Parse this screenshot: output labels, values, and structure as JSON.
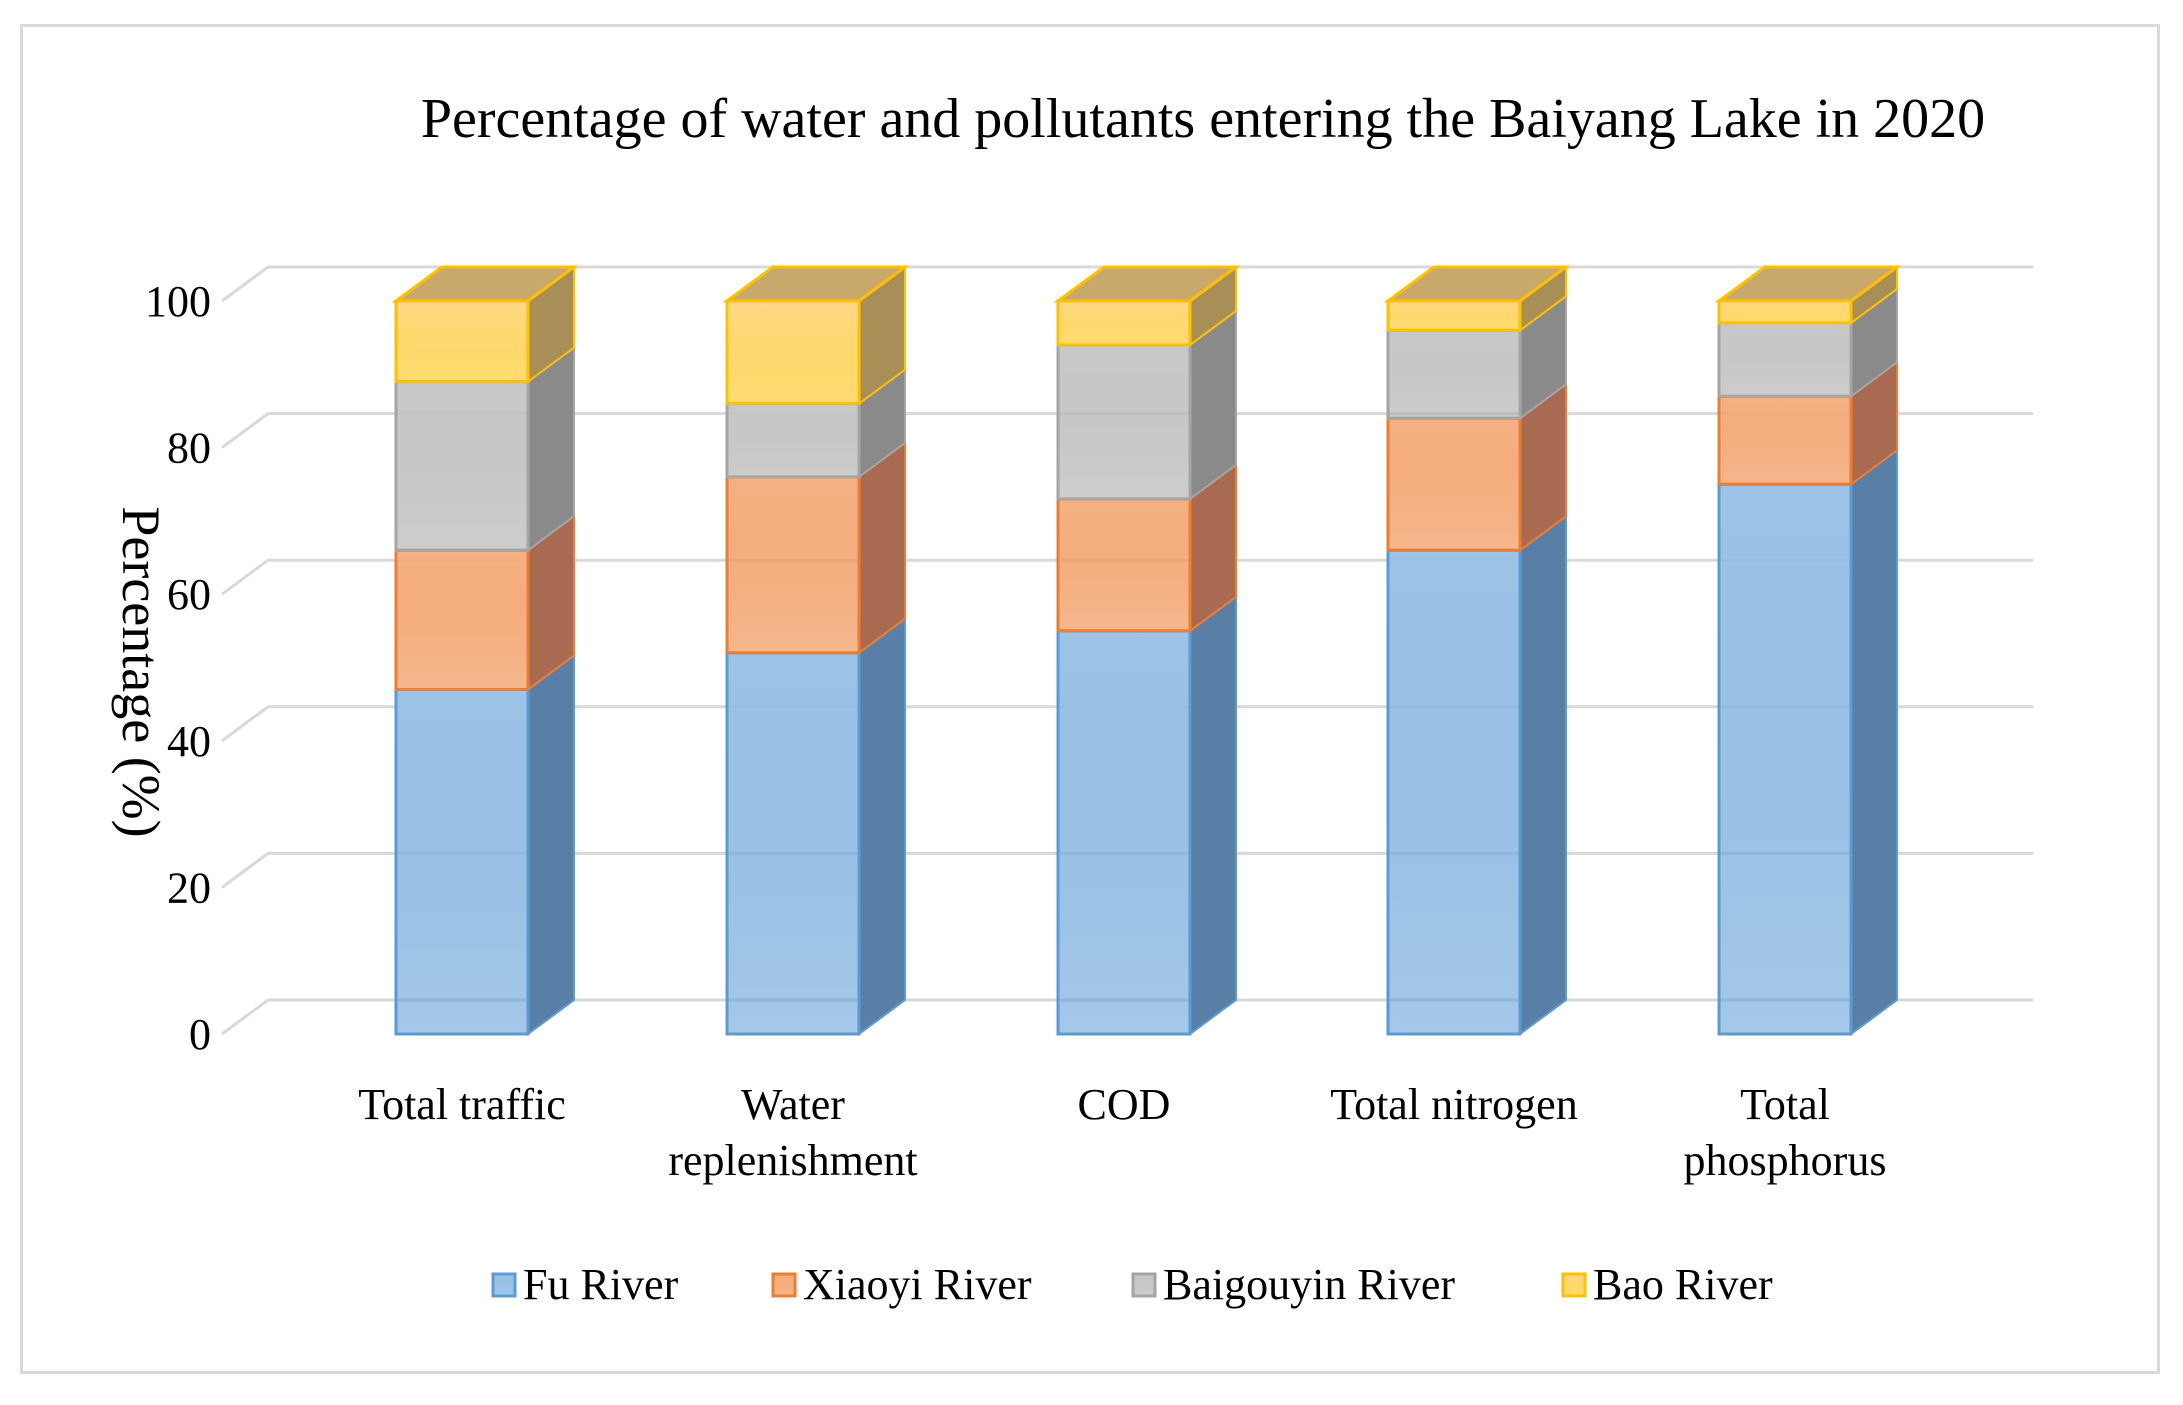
{
  "chart_data": {
    "type": "bar",
    "stacked": true,
    "style": "3d",
    "title": "Percentage of water and pollutants entering the Baiyang Lake in 2020",
    "xlabel": "",
    "ylabel": "Percentage (%)",
    "ylim": [
      0,
      100
    ],
    "yticks": [
      0,
      20,
      40,
      60,
      80,
      100
    ],
    "grid": true,
    "legend_position": "bottom",
    "categories": [
      [
        "Total traffic"
      ],
      [
        "Water",
        "replenishment"
      ],
      [
        "COD"
      ],
      [
        "Total nitrogen"
      ],
      [
        "Total",
        "phosphorus"
      ]
    ],
    "series": [
      {
        "name": "Fu River",
        "values": [
          47,
          52,
          55,
          66,
          75
        ],
        "color": "#9dc3e6",
        "edge": "#5b9bd5",
        "side": "#5a7fa6",
        "top": "#8fb0cf"
      },
      {
        "name": "Xiaoyi River",
        "values": [
          19,
          24,
          18,
          18,
          12
        ],
        "color": "#f4b183",
        "edge": "#ed7d31",
        "side": "#a86a50",
        "top": "#d99a78"
      },
      {
        "name": "Baigouyin River",
        "values": [
          23,
          10,
          21,
          12,
          10
        ],
        "color": "#c9c9c9",
        "edge": "#a5a5a5",
        "side": "#8a8a8a",
        "top": "#b8b8b8"
      },
      {
        "name": "Bao River",
        "values": [
          11,
          14,
          6,
          4,
          3
        ],
        "color": "#ffd98a",
        "edge": "#ffc000",
        "side": "#a88f58",
        "top": "#c9a86c"
      }
    ]
  }
}
